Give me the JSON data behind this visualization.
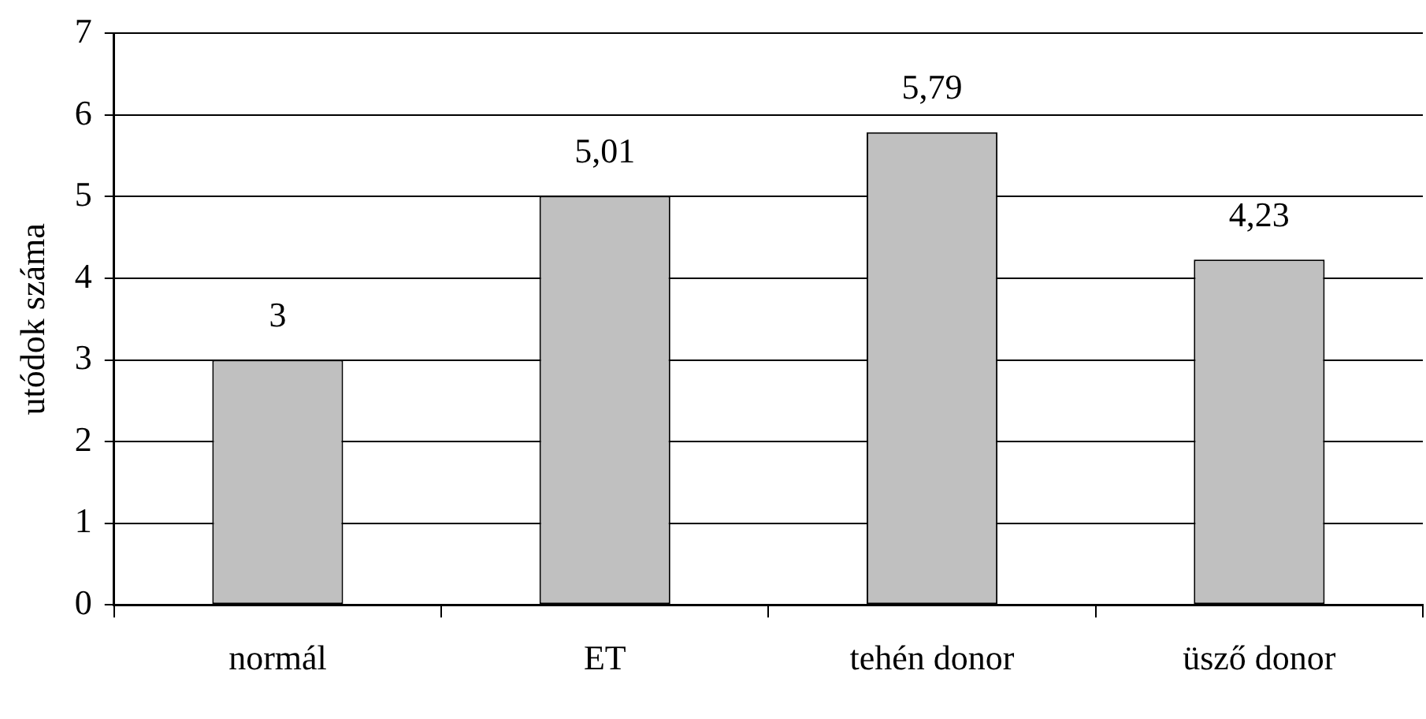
{
  "chart_data": {
    "type": "bar",
    "ylabel": "utódok száma",
    "categories": [
      "normál",
      "ET",
      "tehén donor",
      "üsző donor"
    ],
    "values": [
      3,
      5.01,
      5.79,
      4.23
    ],
    "value_labels": [
      "3",
      "5,01",
      "5,79",
      "4,23"
    ],
    "color": "#c0c0c0",
    "ylim": [
      0,
      7
    ],
    "yticks": [
      0,
      1,
      2,
      3,
      4,
      5,
      6,
      7
    ],
    "grid": "y",
    "legend": false
  }
}
